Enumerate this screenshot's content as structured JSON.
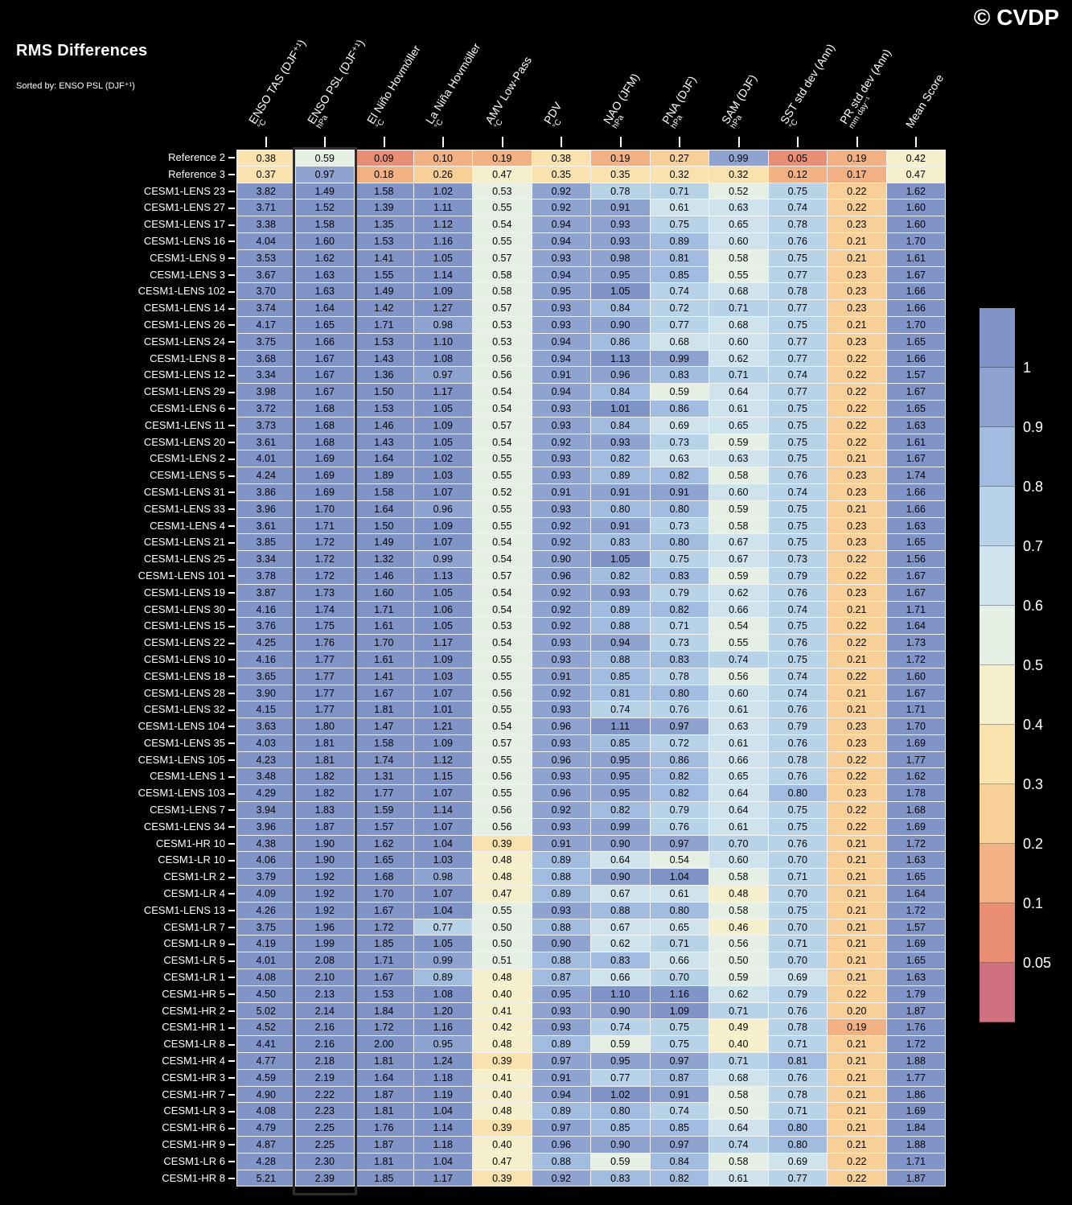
{
  "title": "RMS Differences",
  "subtitle": "Sorted by: ENSO PSL (DJF⁺¹)",
  "watermark": "© CVDP",
  "chart_data": {
    "type": "heatmap",
    "title": "RMS Differences",
    "sorted_by": "ENSO PSL (DJF⁺¹)",
    "sorted_column_index": 1,
    "columns": [
      {
        "label": "ENSO TAS (DJF⁺¹)",
        "unit": "°C"
      },
      {
        "label": "ENSO PSL (DJF⁺¹)",
        "unit": "hPa"
      },
      {
        "label": "El Niño Hovmöller",
        "unit": "°C"
      },
      {
        "label": "La Niña Hovmöller",
        "unit": "°C"
      },
      {
        "label": "AMV Low-Pass",
        "unit": "°C"
      },
      {
        "label": "PDV",
        "unit": "°C"
      },
      {
        "label": "NAO (JFM)",
        "unit": "hPa"
      },
      {
        "label": "PNA (DJF)",
        "unit": "hPa"
      },
      {
        "label": "SAM (DJF)",
        "unit": "hPa"
      },
      {
        "label": "SST std dev (Ann)",
        "unit": "°C"
      },
      {
        "label": "PR std dev (Ann)",
        "unit": "mm day⁻¹"
      },
      {
        "label": "Mean Score",
        "unit": ""
      }
    ],
    "rows": [
      {
        "label": "Reference 2",
        "values": [
          0.38,
          0.59,
          0.09,
          0.1,
          0.19,
          0.38,
          0.19,
          0.27,
          0.99,
          0.05,
          0.19,
          0.42
        ]
      },
      {
        "label": "Reference 3",
        "values": [
          0.37,
          0.97,
          0.18,
          0.26,
          0.47,
          0.35,
          0.35,
          0.32,
          0.32,
          0.12,
          0.17,
          0.47
        ]
      },
      {
        "label": "CESM1-LENS 23",
        "values": [
          3.82,
          1.49,
          1.58,
          1.02,
          0.53,
          0.92,
          0.78,
          0.71,
          0.52,
          0.75,
          0.22,
          1.62
        ]
      },
      {
        "label": "CESM1-LENS 27",
        "values": [
          3.71,
          1.52,
          1.39,
          1.11,
          0.55,
          0.92,
          0.91,
          0.61,
          0.63,
          0.74,
          0.22,
          1.6
        ]
      },
      {
        "label": "CESM1-LENS 17",
        "values": [
          3.38,
          1.58,
          1.35,
          1.12,
          0.54,
          0.94,
          0.93,
          0.75,
          0.65,
          0.78,
          0.23,
          1.6
        ]
      },
      {
        "label": "CESM1-LENS 16",
        "values": [
          4.04,
          1.6,
          1.53,
          1.16,
          0.55,
          0.94,
          0.93,
          0.89,
          0.6,
          0.76,
          0.21,
          1.7
        ]
      },
      {
        "label": "CESM1-LENS 9",
        "values": [
          3.53,
          1.62,
          1.41,
          1.05,
          0.57,
          0.93,
          0.98,
          0.81,
          0.58,
          0.75,
          0.21,
          1.61
        ]
      },
      {
        "label": "CESM1-LENS 3",
        "values": [
          3.67,
          1.63,
          1.55,
          1.14,
          0.58,
          0.94,
          0.95,
          0.85,
          0.55,
          0.77,
          0.23,
          1.67
        ]
      },
      {
        "label": "CESM1-LENS 102",
        "values": [
          3.7,
          1.63,
          1.49,
          1.09,
          0.58,
          0.95,
          1.05,
          0.74,
          0.68,
          0.78,
          0.23,
          1.66
        ]
      },
      {
        "label": "CESM1-LENS 14",
        "values": [
          3.74,
          1.64,
          1.42,
          1.27,
          0.57,
          0.93,
          0.84,
          0.72,
          0.71,
          0.77,
          0.23,
          1.66
        ]
      },
      {
        "label": "CESM1-LENS 26",
        "values": [
          4.17,
          1.65,
          1.71,
          0.98,
          0.53,
          0.93,
          0.9,
          0.77,
          0.68,
          0.75,
          0.21,
          1.7
        ]
      },
      {
        "label": "CESM1-LENS 24",
        "values": [
          3.75,
          1.66,
          1.53,
          1.1,
          0.53,
          0.94,
          0.86,
          0.68,
          0.6,
          0.77,
          0.23,
          1.65
        ]
      },
      {
        "label": "CESM1-LENS 8",
        "values": [
          3.68,
          1.67,
          1.43,
          1.08,
          0.56,
          0.94,
          1.13,
          0.99,
          0.62,
          0.77,
          0.22,
          1.66
        ]
      },
      {
        "label": "CESM1-LENS 12",
        "values": [
          3.34,
          1.67,
          1.36,
          0.97,
          0.56,
          0.91,
          0.96,
          0.83,
          0.71,
          0.74,
          0.22,
          1.57
        ]
      },
      {
        "label": "CESM1-LENS 29",
        "values": [
          3.98,
          1.67,
          1.5,
          1.17,
          0.54,
          0.94,
          0.84,
          0.59,
          0.64,
          0.77,
          0.22,
          1.67
        ]
      },
      {
        "label": "CESM1-LENS 6",
        "values": [
          3.72,
          1.68,
          1.53,
          1.05,
          0.54,
          0.93,
          1.01,
          0.86,
          0.61,
          0.75,
          0.22,
          1.65
        ]
      },
      {
        "label": "CESM1-LENS 11",
        "values": [
          3.73,
          1.68,
          1.46,
          1.09,
          0.57,
          0.93,
          0.84,
          0.69,
          0.65,
          0.75,
          0.22,
          1.63
        ]
      },
      {
        "label": "CESM1-LENS 20",
        "values": [
          3.61,
          1.68,
          1.43,
          1.05,
          0.54,
          0.92,
          0.93,
          0.73,
          0.59,
          0.75,
          0.22,
          1.61
        ]
      },
      {
        "label": "CESM1-LENS 2",
        "values": [
          4.01,
          1.69,
          1.64,
          1.02,
          0.55,
          0.93,
          0.82,
          0.63,
          0.63,
          0.75,
          0.21,
          1.67
        ]
      },
      {
        "label": "CESM1-LENS 5",
        "values": [
          4.24,
          1.69,
          1.89,
          1.03,
          0.55,
          0.93,
          0.89,
          0.82,
          0.58,
          0.76,
          0.23,
          1.74
        ]
      },
      {
        "label": "CESM1-LENS 31",
        "values": [
          3.86,
          1.69,
          1.58,
          1.07,
          0.52,
          0.91,
          0.91,
          0.91,
          0.6,
          0.74,
          0.23,
          1.66
        ]
      },
      {
        "label": "CESM1-LENS 33",
        "values": [
          3.96,
          1.7,
          1.64,
          0.96,
          0.55,
          0.93,
          0.8,
          0.8,
          0.59,
          0.75,
          0.21,
          1.66
        ]
      },
      {
        "label": "CESM1-LENS 4",
        "values": [
          3.61,
          1.71,
          1.5,
          1.09,
          0.55,
          0.92,
          0.91,
          0.73,
          0.58,
          0.75,
          0.23,
          1.63
        ]
      },
      {
        "label": "CESM1-LENS 21",
        "values": [
          3.85,
          1.72,
          1.49,
          1.07,
          0.54,
          0.92,
          0.83,
          0.8,
          0.67,
          0.75,
          0.23,
          1.65
        ]
      },
      {
        "label": "CESM1-LENS 25",
        "values": [
          3.34,
          1.72,
          1.32,
          0.99,
          0.54,
          0.9,
          1.05,
          0.75,
          0.67,
          0.73,
          0.22,
          1.56
        ]
      },
      {
        "label": "CESM1-LENS 101",
        "values": [
          3.78,
          1.72,
          1.46,
          1.13,
          0.57,
          0.96,
          0.82,
          0.83,
          0.59,
          0.79,
          0.22,
          1.67
        ]
      },
      {
        "label": "CESM1-LENS 19",
        "values": [
          3.87,
          1.73,
          1.6,
          1.05,
          0.54,
          0.92,
          0.93,
          0.79,
          0.62,
          0.76,
          0.23,
          1.67
        ]
      },
      {
        "label": "CESM1-LENS 30",
        "values": [
          4.16,
          1.74,
          1.71,
          1.06,
          0.54,
          0.92,
          0.89,
          0.82,
          0.66,
          0.74,
          0.21,
          1.71
        ]
      },
      {
        "label": "CESM1-LENS 15",
        "values": [
          3.76,
          1.75,
          1.61,
          1.05,
          0.53,
          0.92,
          0.88,
          0.71,
          0.54,
          0.75,
          0.22,
          1.64
        ]
      },
      {
        "label": "CESM1-LENS 22",
        "values": [
          4.25,
          1.76,
          1.7,
          1.17,
          0.54,
          0.93,
          0.94,
          0.73,
          0.55,
          0.76,
          0.22,
          1.73
        ]
      },
      {
        "label": "CESM1-LENS 10",
        "values": [
          4.16,
          1.77,
          1.61,
          1.09,
          0.55,
          0.93,
          0.88,
          0.83,
          0.74,
          0.75,
          0.21,
          1.72
        ]
      },
      {
        "label": "CESM1-LENS 18",
        "values": [
          3.65,
          1.77,
          1.41,
          1.03,
          0.55,
          0.91,
          0.85,
          0.78,
          0.56,
          0.74,
          0.22,
          1.6
        ]
      },
      {
        "label": "CESM1-LENS 28",
        "values": [
          3.9,
          1.77,
          1.67,
          1.07,
          0.56,
          0.92,
          0.81,
          0.8,
          0.6,
          0.74,
          0.21,
          1.67
        ]
      },
      {
        "label": "CESM1-LENS 32",
        "values": [
          4.15,
          1.77,
          1.81,
          1.01,
          0.55,
          0.93,
          0.74,
          0.76,
          0.61,
          0.76,
          0.21,
          1.71
        ]
      },
      {
        "label": "CESM1-LENS 104",
        "values": [
          3.63,
          1.8,
          1.47,
          1.21,
          0.54,
          0.96,
          1.11,
          0.97,
          0.63,
          0.79,
          0.23,
          1.7
        ]
      },
      {
        "label": "CESM1-LENS 35",
        "values": [
          4.03,
          1.81,
          1.58,
          1.09,
          0.57,
          0.93,
          0.85,
          0.72,
          0.61,
          0.76,
          0.23,
          1.69
        ]
      },
      {
        "label": "CESM1-LENS 105",
        "values": [
          4.23,
          1.81,
          1.74,
          1.12,
          0.55,
          0.96,
          0.95,
          0.86,
          0.66,
          0.78,
          0.22,
          1.77
        ]
      },
      {
        "label": "CESM1-LENS 1",
        "values": [
          3.48,
          1.82,
          1.31,
          1.15,
          0.56,
          0.93,
          0.95,
          0.82,
          0.65,
          0.76,
          0.22,
          1.62
        ]
      },
      {
        "label": "CESM1-LENS 103",
        "values": [
          4.29,
          1.82,
          1.77,
          1.07,
          0.55,
          0.96,
          0.95,
          0.82,
          0.64,
          0.8,
          0.23,
          1.78
        ]
      },
      {
        "label": "CESM1-LENS 7",
        "values": [
          3.94,
          1.83,
          1.59,
          1.14,
          0.56,
          0.92,
          0.82,
          0.79,
          0.64,
          0.75,
          0.22,
          1.68
        ]
      },
      {
        "label": "CESM1-LENS 34",
        "values": [
          3.96,
          1.87,
          1.57,
          1.07,
          0.56,
          0.93,
          0.99,
          0.76,
          0.61,
          0.75,
          0.22,
          1.69
        ]
      },
      {
        "label": "CESM1-HR 10",
        "values": [
          4.38,
          1.9,
          1.62,
          1.04,
          0.39,
          0.91,
          0.9,
          0.97,
          0.7,
          0.76,
          0.21,
          1.72
        ]
      },
      {
        "label": "CESM1-LR 10",
        "values": [
          4.06,
          1.9,
          1.65,
          1.03,
          0.48,
          0.89,
          0.64,
          0.54,
          0.6,
          0.7,
          0.21,
          1.63
        ]
      },
      {
        "label": "CESM1-LR 2",
        "values": [
          3.79,
          1.92,
          1.68,
          0.98,
          0.48,
          0.88,
          0.9,
          1.04,
          0.58,
          0.71,
          0.21,
          1.65
        ]
      },
      {
        "label": "CESM1-LR 4",
        "values": [
          4.09,
          1.92,
          1.7,
          1.07,
          0.47,
          0.89,
          0.67,
          0.61,
          0.48,
          0.7,
          0.21,
          1.64
        ]
      },
      {
        "label": "CESM1-LENS 13",
        "values": [
          4.26,
          1.92,
          1.67,
          1.04,
          0.55,
          0.93,
          0.88,
          0.8,
          0.58,
          0.75,
          0.21,
          1.72
        ]
      },
      {
        "label": "CESM1-LR 7",
        "values": [
          3.75,
          1.96,
          1.72,
          0.77,
          0.5,
          0.88,
          0.67,
          0.65,
          0.46,
          0.7,
          0.21,
          1.57
        ]
      },
      {
        "label": "CESM1-LR 9",
        "values": [
          4.19,
          1.99,
          1.85,
          1.05,
          0.5,
          0.9,
          0.62,
          0.71,
          0.56,
          0.71,
          0.21,
          1.69
        ]
      },
      {
        "label": "CESM1-LR 5",
        "values": [
          4.01,
          2.08,
          1.71,
          0.99,
          0.51,
          0.88,
          0.83,
          0.66,
          0.5,
          0.7,
          0.21,
          1.65
        ]
      },
      {
        "label": "CESM1-LR 1",
        "values": [
          4.08,
          2.1,
          1.67,
          0.89,
          0.48,
          0.87,
          0.66,
          0.7,
          0.59,
          0.69,
          0.21,
          1.63
        ]
      },
      {
        "label": "CESM1-HR 5",
        "values": [
          4.5,
          2.13,
          1.53,
          1.08,
          0.4,
          0.95,
          1.1,
          1.16,
          0.62,
          0.79,
          0.22,
          1.79
        ]
      },
      {
        "label": "CESM1-HR 2",
        "values": [
          5.02,
          2.14,
          1.84,
          1.2,
          0.41,
          0.93,
          0.9,
          1.09,
          0.71,
          0.76,
          0.2,
          1.87
        ]
      },
      {
        "label": "CESM1-HR 1",
        "values": [
          4.52,
          2.16,
          1.72,
          1.16,
          0.42,
          0.93,
          0.74,
          0.75,
          0.49,
          0.78,
          0.19,
          1.76
        ]
      },
      {
        "label": "CESM1-LR 8",
        "values": [
          4.41,
          2.16,
          2.0,
          0.95,
          0.48,
          0.89,
          0.59,
          0.75,
          0.4,
          0.71,
          0.21,
          1.72
        ]
      },
      {
        "label": "CESM1-HR 4",
        "values": [
          4.77,
          2.18,
          1.81,
          1.24,
          0.39,
          0.97,
          0.95,
          0.97,
          0.71,
          0.81,
          0.21,
          1.88
        ]
      },
      {
        "label": "CESM1-HR 3",
        "values": [
          4.59,
          2.19,
          1.64,
          1.18,
          0.41,
          0.91,
          0.77,
          0.87,
          0.68,
          0.76,
          0.21,
          1.77
        ]
      },
      {
        "label": "CESM1-HR 7",
        "values": [
          4.9,
          2.22,
          1.87,
          1.19,
          0.4,
          0.94,
          1.02,
          0.91,
          0.58,
          0.78,
          0.21,
          1.86
        ]
      },
      {
        "label": "CESM1-LR 3",
        "values": [
          4.08,
          2.23,
          1.81,
          1.04,
          0.48,
          0.89,
          0.8,
          0.74,
          0.5,
          0.71,
          0.21,
          1.69
        ]
      },
      {
        "label": "CESM1-HR 6",
        "values": [
          4.79,
          2.25,
          1.76,
          1.14,
          0.39,
          0.97,
          0.85,
          0.85,
          0.64,
          0.8,
          0.21,
          1.84
        ]
      },
      {
        "label": "CESM1-HR 9",
        "values": [
          4.87,
          2.25,
          1.87,
          1.18,
          0.4,
          0.96,
          0.9,
          0.97,
          0.74,
          0.8,
          0.21,
          1.88
        ]
      },
      {
        "label": "CESM1-LR 6",
        "values": [
          4.28,
          2.3,
          1.81,
          1.04,
          0.47,
          0.88,
          0.59,
          0.84,
          0.58,
          0.69,
          0.22,
          1.71
        ]
      },
      {
        "label": "CESM1-HR 8",
        "values": [
          5.21,
          2.39,
          1.85,
          1.17,
          0.39,
          0.92,
          0.83,
          0.82,
          0.61,
          0.77,
          0.22,
          1.87
        ]
      }
    ],
    "colorbar": {
      "tick_labels": [
        "1",
        "0.9",
        "0.8",
        "0.7",
        "0.6",
        "0.5",
        "0.4",
        "0.3",
        "0.2",
        "0.1",
        "0.05"
      ],
      "breakpoints": [
        1.0,
        0.9,
        0.8,
        0.7,
        0.6,
        0.5,
        0.4,
        0.3,
        0.2,
        0.1,
        0.05
      ],
      "colors_top_to_bottom": [
        "#8094c8",
        "#8fa3d1",
        "#a2bcdf",
        "#b8d3e8",
        "#cfe3ed",
        "#e6efe3",
        "#f5f0cb",
        "#f9e2ad",
        "#f7cf97",
        "#f2b183",
        "#e98d74",
        "#d06f7e"
      ]
    }
  }
}
